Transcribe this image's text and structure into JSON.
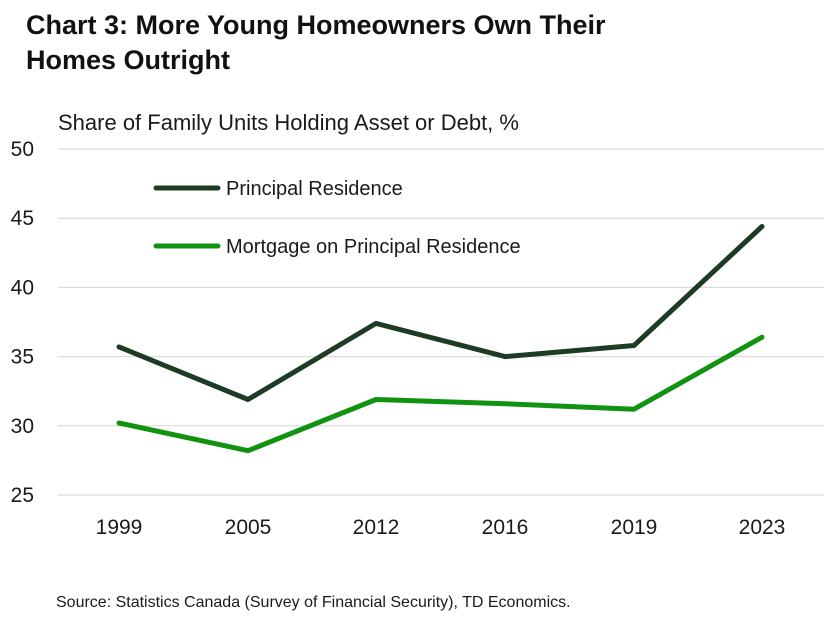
{
  "header": {
    "title_line1": "Chart 3: More Young Homeowners Own Their",
    "title_line2": "Homes Outright"
  },
  "footer": {
    "source": "Source: Statistics Canada (Survey of Financial Security), TD Economics."
  },
  "chart_data": {
    "type": "line",
    "title": "Chart 3: More Young Homeowners Own Their Homes Outright",
    "ylabel": "Share of Family Units Holding Asset or Debt, %",
    "xlabel": "",
    "categories": [
      "1999",
      "2005",
      "2012",
      "2016",
      "2019",
      "2023"
    ],
    "ylim": [
      25,
      50
    ],
    "yticks": [
      25,
      30,
      35,
      40,
      45,
      50
    ],
    "grid": true,
    "legend_position": "top-left",
    "series": [
      {
        "name": "Principal Residence",
        "color": "#1e3b24",
        "values": [
          35.7,
          31.9,
          37.4,
          35.0,
          35.8,
          44.4
        ]
      },
      {
        "name": "Mortgage on Principal Residence",
        "color": "#119311",
        "values": [
          30.2,
          28.2,
          31.9,
          31.6,
          31.2,
          36.4
        ]
      }
    ]
  }
}
